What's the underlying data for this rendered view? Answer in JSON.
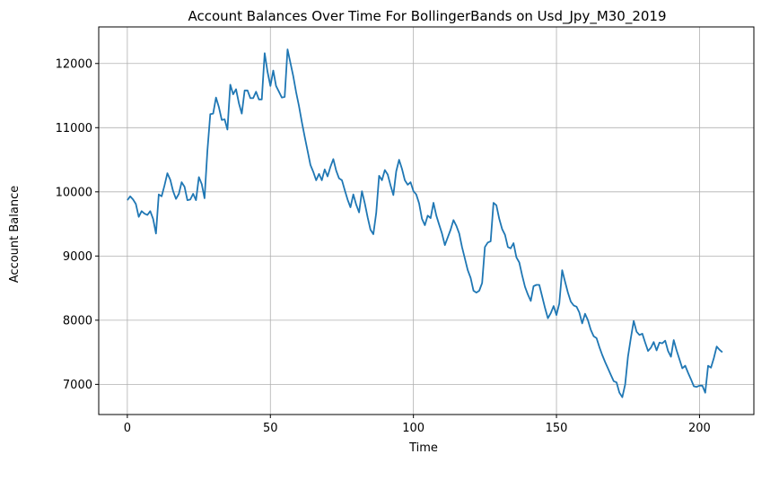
{
  "chart_data": {
    "type": "line",
    "title": "Account Balances Over Time For BollingerBands on Usd_Jpy_M30_2019",
    "xlabel": "Time",
    "ylabel": "Account Balance",
    "xlim": [
      -10,
      219
    ],
    "ylim": [
      6530,
      12570
    ],
    "xticks": [
      0,
      50,
      100,
      150,
      200
    ],
    "yticks": [
      7000,
      8000,
      9000,
      10000,
      11000,
      12000
    ],
    "grid": true,
    "line_color": "#1f77b4",
    "series": [
      {
        "x": [
          0,
          1,
          2,
          3,
          4,
          5,
          6,
          7,
          8,
          9,
          10,
          11,
          12,
          13,
          14,
          15,
          16,
          17,
          18,
          19,
          20,
          21,
          22,
          23,
          24,
          25,
          26,
          27,
          28,
          29,
          30,
          31,
          32,
          33,
          34,
          35,
          36,
          37,
          38,
          39,
          40,
          41,
          42,
          43,
          44,
          45,
          46,
          47,
          48,
          49,
          50,
          51,
          52,
          53,
          54,
          55,
          56,
          57,
          58,
          59,
          60,
          61,
          62,
          63,
          64,
          65,
          66,
          67,
          68,
          69,
          70,
          71,
          72,
          73,
          74,
          75,
          76,
          77,
          78,
          79,
          80,
          81,
          82,
          83,
          84,
          85,
          86,
          87,
          88,
          89,
          90,
          91,
          92,
          93,
          94,
          95,
          96,
          97,
          98,
          99,
          100,
          101,
          102,
          103,
          104,
          105,
          106,
          107,
          108,
          109,
          110,
          111,
          112,
          113,
          114,
          115,
          116,
          117,
          118,
          119,
          120,
          121,
          122,
          123,
          124,
          125,
          126,
          127,
          128,
          129,
          130,
          131,
          132,
          133,
          134,
          135,
          136,
          137,
          138,
          139,
          140,
          141,
          142,
          143,
          144,
          145,
          146,
          147,
          148,
          149,
          150,
          151,
          152,
          153,
          154,
          155,
          156,
          157,
          158,
          159,
          160,
          161,
          162,
          163,
          164,
          165,
          166,
          167,
          168,
          169,
          170,
          171,
          172,
          173,
          174,
          175,
          176,
          177,
          178,
          179,
          180,
          181,
          182,
          183,
          184,
          185,
          186,
          187,
          188,
          189,
          190,
          191,
          192,
          193,
          194,
          195,
          196,
          197,
          198,
          199,
          200,
          201,
          202,
          203,
          204,
          205,
          206,
          207,
          208
        ],
        "values": [
          9870,
          9930,
          9880,
          9810,
          9610,
          9700,
          9660,
          9640,
          9700,
          9580,
          9350,
          9960,
          9930,
          10100,
          10290,
          10190,
          10010,
          9890,
          9970,
          10150,
          10080,
          9870,
          9880,
          9970,
          9870,
          10230,
          10120,
          9900,
          10640,
          11210,
          11220,
          11470,
          11320,
          11120,
          11130,
          10970,
          11670,
          11520,
          11600,
          11380,
          11220,
          11580,
          11580,
          11460,
          11460,
          11560,
          11440,
          11440,
          12160,
          11870,
          11650,
          11890,
          11650,
          11560,
          11470,
          11480,
          12220,
          12010,
          11800,
          11550,
          11340,
          11090,
          10860,
          10640,
          10420,
          10310,
          10180,
          10280,
          10180,
          10350,
          10240,
          10390,
          10510,
          10330,
          10210,
          10180,
          10030,
          9880,
          9760,
          9960,
          9800,
          9680,
          10010,
          9820,
          9600,
          9410,
          9340,
          9670,
          10250,
          10180,
          10340,
          10270,
          10100,
          9950,
          10320,
          10500,
          10360,
          10180,
          10110,
          10150,
          10010,
          9960,
          9820,
          9580,
          9480,
          9630,
          9590,
          9830,
          9630,
          9490,
          9350,
          9170,
          9290,
          9410,
          9560,
          9470,
          9350,
          9140,
          8960,
          8780,
          8660,
          8460,
          8430,
          8460,
          8580,
          9140,
          9210,
          9230,
          9830,
          9790,
          9580,
          9420,
          9330,
          9140,
          9120,
          9200,
          8980,
          8900,
          8700,
          8520,
          8400,
          8300,
          8530,
          8550,
          8550,
          8370,
          8190,
          8030,
          8110,
          8220,
          8080,
          8260,
          8780,
          8600,
          8430,
          8290,
          8230,
          8210,
          8120,
          7950,
          8100,
          8000,
          7850,
          7750,
          7720,
          7580,
          7460,
          7350,
          7250,
          7150,
          7050,
          7030,
          6870,
          6800,
          7000,
          7430,
          7720,
          7990,
          7820,
          7770,
          7790,
          7650,
          7520,
          7570,
          7660,
          7530,
          7650,
          7640,
          7680,
          7520,
          7430,
          7690,
          7530,
          7390,
          7250,
          7290,
          7180,
          7080,
          6970,
          6960,
          6980,
          6980,
          6870,
          7290,
          7260,
          7410,
          7590,
          7540,
          7500
        ]
      }
    ]
  }
}
